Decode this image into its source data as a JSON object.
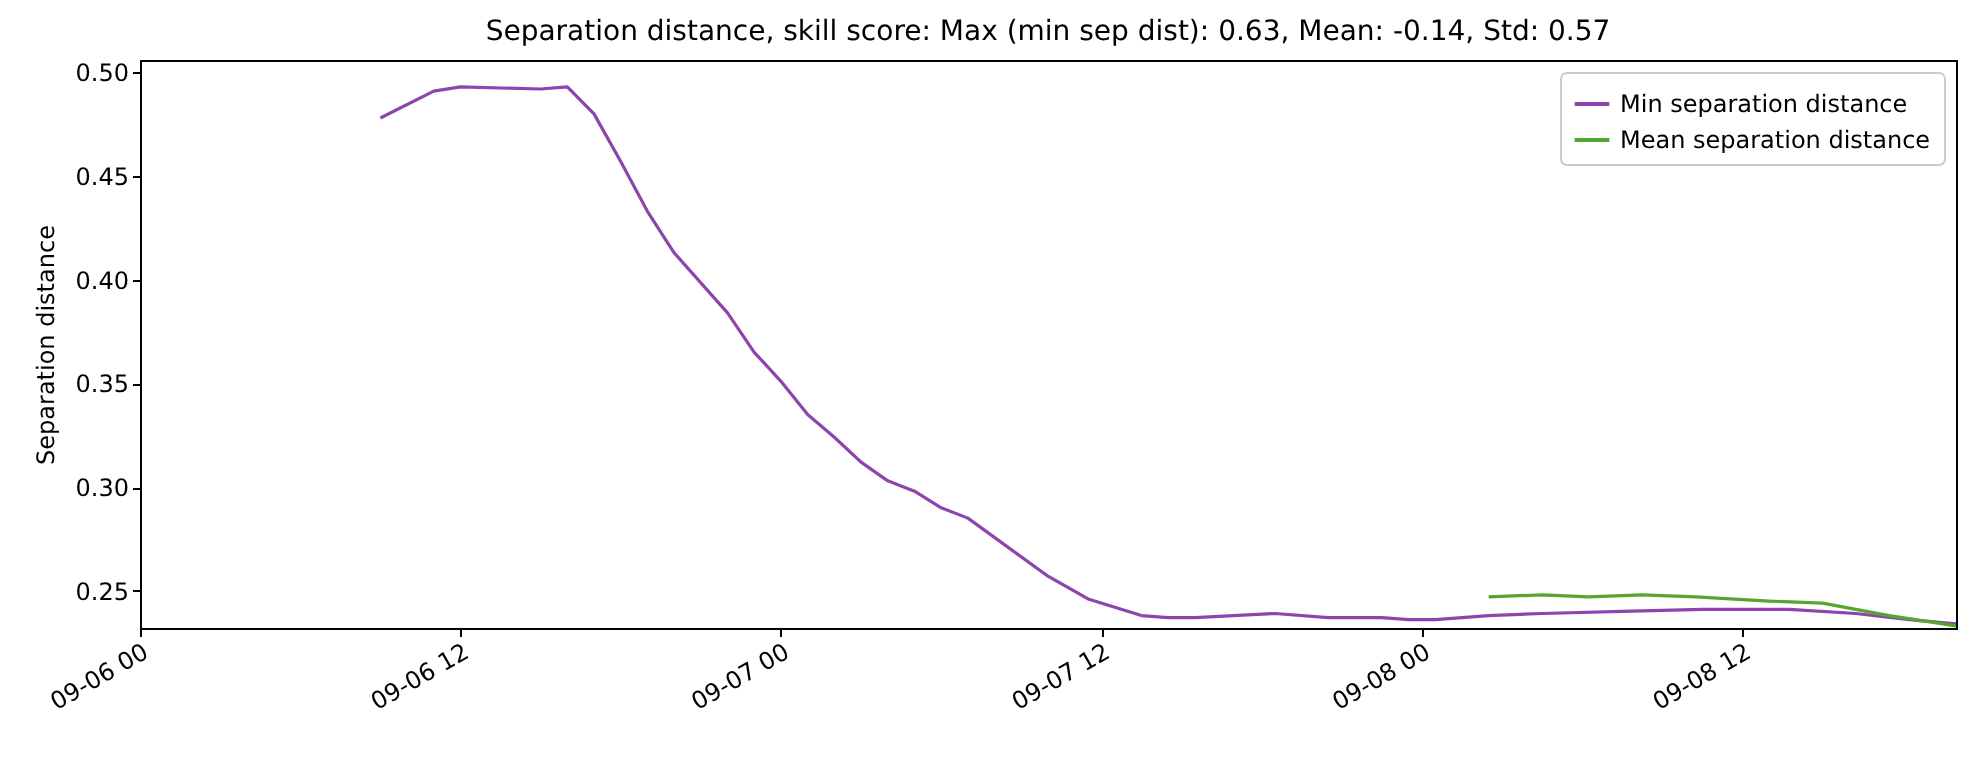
{
  "chart_data": {
    "type": "line",
    "title": "Separation distance, skill score: Max (min sep dist): 0.63, Mean: -0.14, Std: 0.57",
    "ylabel": "Separation distance",
    "xlim": [
      "--09-06T00:00",
      "--09-08T20:00"
    ],
    "ylim": [
      0.232,
      0.506
    ],
    "xticks": [
      {
        "value": "--09-06T00:00",
        "label": "09-06 00"
      },
      {
        "value": "--09-06T12:00",
        "label": "09-06 12"
      },
      {
        "value": "--09-07T00:00",
        "label": "09-07 00"
      },
      {
        "value": "--09-07T12:00",
        "label": "09-07 12"
      },
      {
        "value": "--09-08T00:00",
        "label": "09-08 00"
      },
      {
        "value": "--09-08T12:00",
        "label": "09-08 12"
      }
    ],
    "yticks": [
      {
        "value": 0.25,
        "label": "0.25"
      },
      {
        "value": 0.3,
        "label": "0.30"
      },
      {
        "value": 0.35,
        "label": "0.35"
      },
      {
        "value": 0.4,
        "label": "0.40"
      },
      {
        "value": 0.45,
        "label": "0.45"
      },
      {
        "value": 0.5,
        "label": "0.50"
      }
    ],
    "grid": false,
    "legend": "top right",
    "line_style": "solid",
    "series": [
      {
        "name": "Min separation distance",
        "color": "#8e44ad",
        "x": [
          "--09-06T09:00",
          "--09-06T11:00",
          "--09-06T12:00",
          "--09-06T15:00",
          "--09-06T16:00",
          "--09-06T17:00",
          "--09-06T18:00",
          "--09-06T19:00",
          "--09-06T20:00",
          "--09-06T22:00",
          "--09-06T23:00",
          "--09-07T00:00",
          "--09-07T01:00",
          "--09-07T02:00",
          "--09-07T03:00",
          "--09-07T04:00",
          "--09-07T05:00",
          "--09-07T06:00",
          "--09-07T07:00",
          "--09-07T10:00",
          "--09-07T11:30",
          "--09-07T13:30",
          "--09-07T14:30",
          "--09-07T15:30",
          "--09-07T18:30",
          "--09-07T20:30",
          "--09-07T22:30",
          "--09-07T23:30",
          "--09-08T00:30",
          "--09-08T02:30",
          "--09-08T04:30",
          "--09-08T07:30",
          "--09-08T10:30",
          "--09-08T13:45",
          "--09-08T16:15",
          "--09-08T18:15",
          "--09-08T20:00"
        ],
        "values": [
          0.478,
          0.491,
          0.493,
          0.492,
          0.493,
          0.48,
          0.457,
          0.433,
          0.413,
          0.384,
          0.365,
          0.351,
          0.335,
          0.324,
          0.312,
          0.303,
          0.298,
          0.29,
          0.285,
          0.257,
          0.246,
          0.238,
          0.237,
          0.237,
          0.239,
          0.237,
          0.237,
          0.236,
          0.236,
          0.238,
          0.239,
          0.24,
          0.241,
          0.241,
          0.239,
          0.236,
          0.234
        ]
      },
      {
        "name": "Mean separation distance",
        "color": "#55a630",
        "x": [
          "--09-08T02:30",
          "--09-08T04:30",
          "--09-08T06:15",
          "--09-08T08:15",
          "--09-08T10:15",
          "--09-08T13:00",
          "--09-08T15:00",
          "--09-08T17:30",
          "--09-08T20:00"
        ],
        "values": [
          0.247,
          0.248,
          0.247,
          0.248,
          0.247,
          0.245,
          0.244,
          0.238,
          0.233
        ]
      }
    ]
  }
}
